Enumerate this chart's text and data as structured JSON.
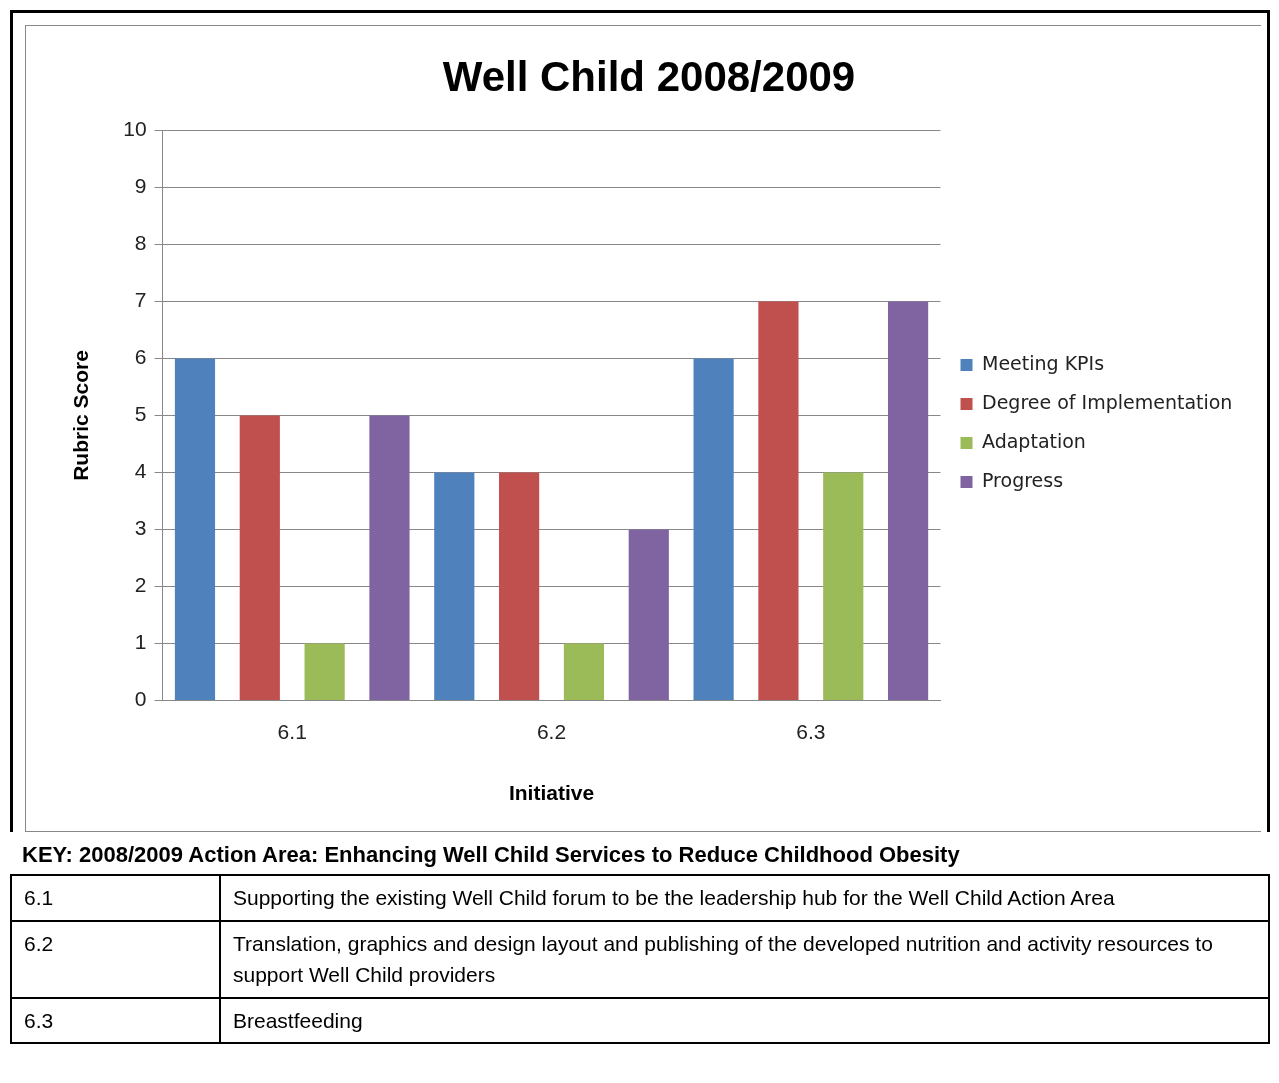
{
  "chart_data": {
    "type": "bar",
    "title": "Well Child 2008/2009",
    "xlabel": "Initiative",
    "ylabel": "Rubric Score",
    "categories": [
      "6.1",
      "6.2",
      "6.3"
    ],
    "series": [
      {
        "name": "Meeting KPIs",
        "color": "#4f81bd",
        "values": [
          6,
          4,
          6
        ]
      },
      {
        "name": "Degree of Implementation",
        "color": "#c0504d",
        "values": [
          5,
          4,
          7
        ]
      },
      {
        "name": "Adaptation",
        "color": "#9bbb59",
        "values": [
          1,
          1,
          4
        ]
      },
      {
        "name": "Progress",
        "color": "#8064a2",
        "values": [
          5,
          3,
          7
        ]
      }
    ],
    "ylim": [
      0,
      10
    ],
    "yticks": [
      0,
      1,
      2,
      3,
      4,
      5,
      6,
      7,
      8,
      9,
      10
    ],
    "grid": "y",
    "legend": "right",
    "annotations": [
      "KEY: 2008/2009 Action Area: Enhancing Well Child Services to Reduce Childhood Obesity",
      "6.1",
      "Supporting the existing Well Child forum to be the leadership hub for the Well Child Action Area",
      "6.2",
      "Translation, graphics and design layout and publishing of the developed nutrition and activity resources to support Well Child providers",
      "6.3",
      "Breastfeeding"
    ]
  }
}
